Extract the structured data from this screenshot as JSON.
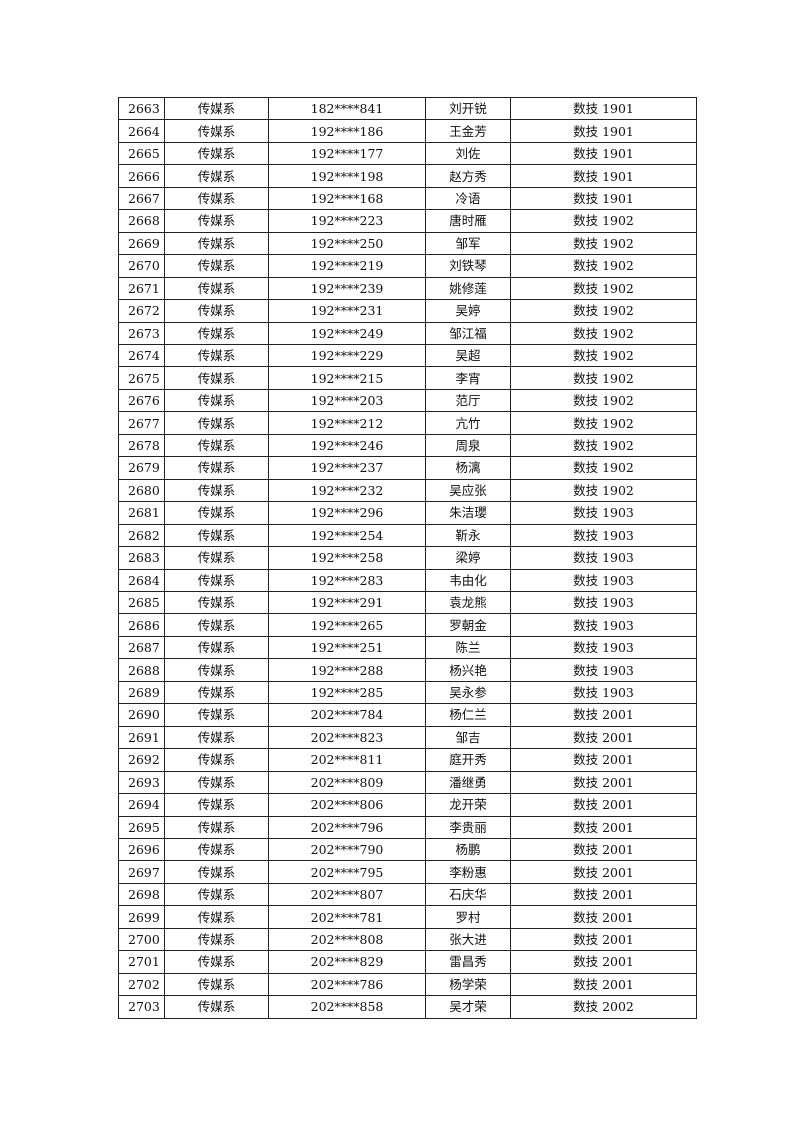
{
  "table": {
    "rows": [
      [
        "2663",
        "传媒系",
        "182****841",
        "刘开锐",
        "数技 1901"
      ],
      [
        "2664",
        "传媒系",
        "192****186",
        "王金芳",
        "数技 1901"
      ],
      [
        "2665",
        "传媒系",
        "192****177",
        "刘佐",
        "数技 1901"
      ],
      [
        "2666",
        "传媒系",
        "192****198",
        "赵方秀",
        "数技 1901"
      ],
      [
        "2667",
        "传媒系",
        "192****168",
        "冷语",
        "数技 1901"
      ],
      [
        "2668",
        "传媒系",
        "192****223",
        "唐时雁",
        "数技 1902"
      ],
      [
        "2669",
        "传媒系",
        "192****250",
        "邹军",
        "数技 1902"
      ],
      [
        "2670",
        "传媒系",
        "192****219",
        "刘铁琴",
        "数技 1902"
      ],
      [
        "2671",
        "传媒系",
        "192****239",
        "姚修莲",
        "数技 1902"
      ],
      [
        "2672",
        "传媒系",
        "192****231",
        "吴婷",
        "数技 1902"
      ],
      [
        "2673",
        "传媒系",
        "192****249",
        "邹江福",
        "数技 1902"
      ],
      [
        "2674",
        "传媒系",
        "192****229",
        "吴超",
        "数技 1902"
      ],
      [
        "2675",
        "传媒系",
        "192****215",
        "李宵",
        "数技 1902"
      ],
      [
        "2676",
        "传媒系",
        "192****203",
        "范厅",
        "数技 1902"
      ],
      [
        "2677",
        "传媒系",
        "192****212",
        "亢竹",
        "数技 1902"
      ],
      [
        "2678",
        "传媒系",
        "192****246",
        "周泉",
        "数技 1902"
      ],
      [
        "2679",
        "传媒系",
        "192****237",
        "杨漓",
        "数技 1902"
      ],
      [
        "2680",
        "传媒系",
        "192****232",
        "吴应张",
        "数技 1902"
      ],
      [
        "2681",
        "传媒系",
        "192****296",
        "朱洁瓔",
        "数技 1903"
      ],
      [
        "2682",
        "传媒系",
        "192****254",
        "靳永",
        "数技 1903"
      ],
      [
        "2683",
        "传媒系",
        "192****258",
        "梁婷",
        "数技 1903"
      ],
      [
        "2684",
        "传媒系",
        "192****283",
        "韦由化",
        "数技 1903"
      ],
      [
        "2685",
        "传媒系",
        "192****291",
        "袁龙熊",
        "数技 1903"
      ],
      [
        "2686",
        "传媒系",
        "192****265",
        "罗朝金",
        "数技 1903"
      ],
      [
        "2687",
        "传媒系",
        "192****251",
        "陈兰",
        "数技 1903"
      ],
      [
        "2688",
        "传媒系",
        "192****288",
        "杨兴艳",
        "数技 1903"
      ],
      [
        "2689",
        "传媒系",
        "192****285",
        "吴永参",
        "数技 1903"
      ],
      [
        "2690",
        "传媒系",
        "202****784",
        "杨仁兰",
        "数技 2001"
      ],
      [
        "2691",
        "传媒系",
        "202****823",
        "邹吉",
        "数技 2001"
      ],
      [
        "2692",
        "传媒系",
        "202****811",
        "庭开秀",
        "数技 2001"
      ],
      [
        "2693",
        "传媒系",
        "202****809",
        "潘继勇",
        "数技 2001"
      ],
      [
        "2694",
        "传媒系",
        "202****806",
        "龙开荣",
        "数技 2001"
      ],
      [
        "2695",
        "传媒系",
        "202****796",
        "李贵丽",
        "数技 2001"
      ],
      [
        "2696",
        "传媒系",
        "202****790",
        "杨鹏",
        "数技 2001"
      ],
      [
        "2697",
        "传媒系",
        "202****795",
        "李粉惠",
        "数技 2001"
      ],
      [
        "2698",
        "传媒系",
        "202****807",
        "石庆华",
        "数技 2001"
      ],
      [
        "2699",
        "传媒系",
        "202****781",
        "罗村",
        "数技 2001"
      ],
      [
        "2700",
        "传媒系",
        "202****808",
        "张大进",
        "数技 2001"
      ],
      [
        "2701",
        "传媒系",
        "202****829",
        "雷昌秀",
        "数技 2001"
      ],
      [
        "2702",
        "传媒系",
        "202****786",
        "杨学荣",
        "数技 2001"
      ],
      [
        "2703",
        "传媒系",
        "202****858",
        "吴才荣",
        "数技 2002"
      ]
    ]
  }
}
